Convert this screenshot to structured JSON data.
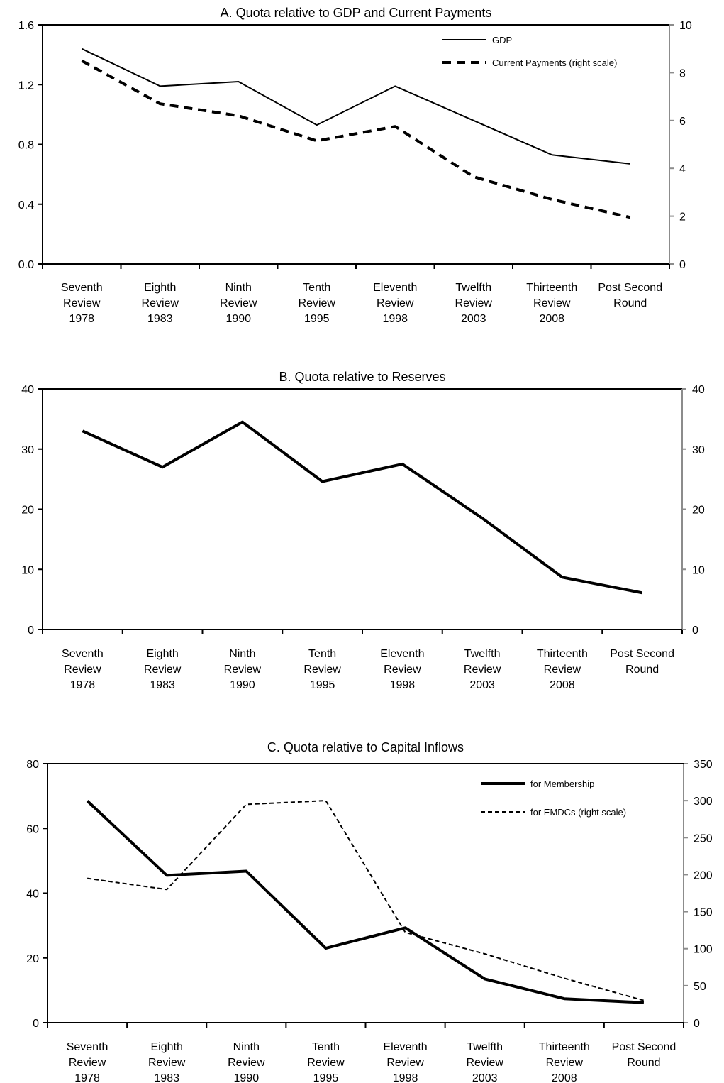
{
  "chart_data": [
    {
      "type": "line",
      "title": "A. Quota relative to GDP and Current Payments",
      "categories": [
        [
          "Seventh",
          "Review",
          "1978"
        ],
        [
          "Eighth",
          "Review",
          "1983"
        ],
        [
          "Ninth",
          "Review",
          "1990"
        ],
        [
          "Tenth",
          "Review",
          "1995"
        ],
        [
          "Eleventh",
          "Review",
          "1998"
        ],
        [
          "Twelfth",
          "Review",
          "2003"
        ],
        [
          "Thirteenth",
          "Review",
          "2008"
        ],
        [
          "Post Second",
          "Round"
        ]
      ],
      "ylim": [
        0,
        1.6
      ],
      "yticks": [
        "0.0",
        "0.4",
        "0.8",
        "1.2",
        "1.6"
      ],
      "y2lim": [
        0,
        10
      ],
      "y2ticks": [
        "0",
        "2",
        "4",
        "6",
        "8",
        "10"
      ],
      "legend_position": "top-right",
      "series": [
        {
          "name": "GDP",
          "axis": "left",
          "style": "solid-thin",
          "values": [
            1.44,
            1.19,
            1.22,
            0.93,
            1.19,
            0.96,
            0.73,
            0.67
          ]
        },
        {
          "name": "Current Payments (right scale)",
          "axis": "right",
          "style": "dashed-thick",
          "values": [
            8.5,
            6.7,
            6.2,
            5.15,
            5.75,
            3.65,
            2.7,
            1.95
          ]
        }
      ]
    },
    {
      "type": "line",
      "title": "B. Quota relative to Reserves",
      "categories": [
        [
          "Seventh",
          "Review",
          "1978"
        ],
        [
          "Eighth",
          "Review",
          "1983"
        ],
        [
          "Ninth",
          "Review",
          "1990"
        ],
        [
          "Tenth",
          "Review",
          "1995"
        ],
        [
          "Eleventh",
          "Review",
          "1998"
        ],
        [
          "Twelfth",
          "Review",
          "2003"
        ],
        [
          "Thirteenth",
          "Review",
          "2008"
        ],
        [
          "Post Second",
          "Round"
        ]
      ],
      "ylim": [
        0,
        40
      ],
      "yticks": [
        "0",
        "10",
        "20",
        "30",
        "40"
      ],
      "y2lim": [
        0,
        40
      ],
      "y2ticks": [
        "0",
        "10",
        "20",
        "30",
        "40"
      ],
      "series": [
        {
          "axis": "left",
          "style": "solid-thick",
          "values": [
            33.0,
            27.0,
            34.5,
            24.6,
            27.5,
            18.5,
            8.7,
            6.1
          ]
        }
      ]
    },
    {
      "type": "line",
      "title": "C. Quota relative to Capital Inflows",
      "categories": [
        [
          "Seventh",
          "Review",
          "1978"
        ],
        [
          "Eighth",
          "Review",
          "1983"
        ],
        [
          "Ninth",
          "Review",
          "1990"
        ],
        [
          "Tenth",
          "Review",
          "1995"
        ],
        [
          "Eleventh",
          "Review",
          "1998"
        ],
        [
          "Twelfth",
          "Review",
          "2003"
        ],
        [
          "Thirteenth",
          "Review",
          "2008"
        ],
        [
          "Post Second",
          "Round"
        ]
      ],
      "ylim": [
        0,
        80
      ],
      "yticks": [
        "0",
        "20",
        "40",
        "60",
        "80"
      ],
      "y2lim": [
        0,
        350
      ],
      "y2ticks": [
        "0",
        "50",
        "100",
        "150",
        "200",
        "250",
        "300",
        "350"
      ],
      "legend_position": "top-right",
      "series": [
        {
          "name": "for Membership",
          "axis": "left",
          "style": "solid-thick",
          "values": [
            68.5,
            45.5,
            46.8,
            23.0,
            29.3,
            13.5,
            7.4,
            6.2
          ]
        },
        {
          "name": "for EMDCs (right scale)",
          "axis": "right",
          "style": "dashed-thin",
          "values": [
            195,
            180,
            295,
            300,
            122,
            93,
            60,
            30
          ]
        }
      ]
    }
  ]
}
